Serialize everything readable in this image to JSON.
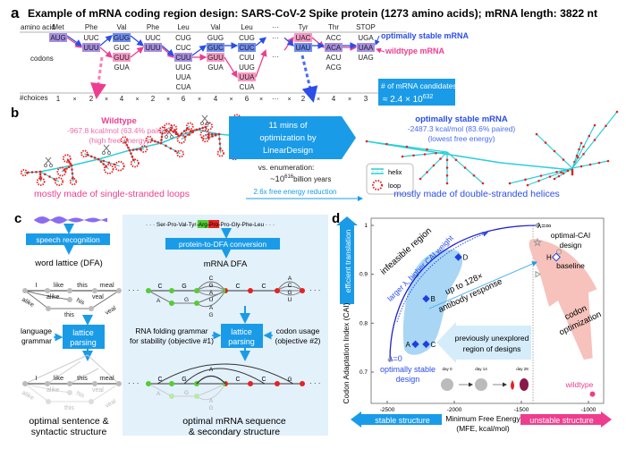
{
  "colors": {
    "optimal": "#2b4de8",
    "wildtype": "#ee3d8f",
    "accent": "#1a9be8",
    "panel_bg": "#e3f1fb",
    "opt_fill": "#6f8cf0",
    "wt_fill": "#f59ac3"
  },
  "panel_a": {
    "letter": "a",
    "title": "Example of mRNA coding region design: SARS-CoV-2 Spike protein (1273 amino acids); mRNA length: 3822 nt",
    "row_amino": "amino acid",
    "row_codons": "codons",
    "row_choices": "#choices",
    "columns": [
      {
        "aa": "Met",
        "codons": [
          "AUG"
        ],
        "choices": "1",
        "opt": 0,
        "wt": 0
      },
      {
        "aa": "Phe",
        "codons": [
          "UUC",
          "UUU"
        ],
        "choices": "2",
        "opt": 1,
        "wt": 1
      },
      {
        "aa": "Val",
        "codons": [
          "GUG",
          "GUC",
          "GUU",
          "GUA"
        ],
        "choices": "4",
        "opt": 0,
        "wt": 2
      },
      {
        "aa": "Phe",
        "codons": [
          "UUC",
          "UUU"
        ],
        "choices": "2",
        "opt": 1,
        "wt": 1
      },
      {
        "aa": "Leu",
        "codons": [
          "CUG",
          "CUC",
          "CUU",
          "UUG",
          "UUA",
          "CUA"
        ],
        "choices": "6",
        "opt": 2,
        "wt": 2
      },
      {
        "aa": "Val",
        "codons": [
          "GUG",
          "GUC",
          "GUU",
          "GUA"
        ],
        "choices": "4",
        "opt": 1,
        "wt": 2
      },
      {
        "aa": "Leu",
        "codons": [
          "CUG",
          "CUC",
          "CUU",
          "UUG",
          "UUA",
          "CUA"
        ],
        "choices": "6",
        "opt": 1,
        "wt": 4
      },
      {
        "aa": "···",
        "codons": [
          "···",
          "···"
        ],
        "choices": "···",
        "opt": null,
        "wt": null
      },
      {
        "aa": "Tyr",
        "codons": [
          "UAC",
          "UAU"
        ],
        "choices": "2",
        "opt": 1,
        "wt": 0
      },
      {
        "aa": "Thr",
        "codons": [
          "ACC",
          "ACA",
          "ACU",
          "ACG"
        ],
        "choices": "4",
        "opt": 1,
        "wt": 1
      },
      {
        "aa": "STOP",
        "codons": [
          "UGA",
          "UAA",
          "UAG"
        ],
        "choices": "3",
        "opt": 1,
        "wt": 1
      }
    ],
    "times": "×",
    "legend_optimal": "optimally stable mRNA",
    "legend_wildtype": "wildtype mRNA",
    "candidates_label": "# of mRNA candidates",
    "candidates_value": "≈ 2.4 × 10",
    "candidates_exp": "632"
  },
  "panel_b": {
    "letter": "b",
    "wt_title": "Wildtype",
    "wt_energy": "-967.8 kcal/mol (63.4% paired)",
    "wt_note": "(high free energy)",
    "wt_caption": "mostly made of single-stranded loops",
    "arrow_lines": [
      "11 mins of",
      "optimization by",
      "LinearDesign"
    ],
    "enum_label": "vs. enumeration:",
    "enum_value": "~10",
    "enum_exp": "616",
    "enum_unit": "billion years",
    "reduction": "2.6x free energy reduction",
    "legend_helix": "helix",
    "legend_loop": "loop",
    "opt_title": "optimally stable mRNA",
    "opt_energy": "-2487.3 kcal/mol (83.6% paired)",
    "opt_note": "(lowest free energy)",
    "opt_caption": "mostly made of double-stranded helices"
  },
  "panel_c": {
    "letter": "c",
    "speech_box": "speech recognition",
    "word_lattice": "word lattice (DFA)",
    "words": {
      "I": "I",
      "like": "like",
      "this": "this",
      "meal": "meal",
      "alike": "alike",
      "his": "his",
      "veal": "veal"
    },
    "language_grammar": [
      "language",
      "grammar"
    ],
    "lattice_parsing": [
      "lattice",
      "parsing"
    ],
    "optimal_sentence": [
      "optimal sentence &",
      "syntactic structure"
    ],
    "protein_seq_pre": "· · · Ser-Pro-Val-Tyr-",
    "protein_arg": "Arg",
    "protein_sep": "-",
    "protein_pro": "Pro",
    "protein_seq_post": "-Pro-Gly-Phe-Leu · · ·",
    "dfa_box": "protein-to-DFA conversion",
    "mrna_dfa": "mRNA DFA",
    "rna_grammar": [
      "RNA folding grammar",
      "for stability (objective #1)"
    ],
    "codon_usage": [
      "codon usage",
      "(objective #2)"
    ],
    "optimal_mrna": [
      "optimal mRNA sequence",
      "& secondary structure"
    ],
    "dots": "· · ·"
  },
  "panel_d": {
    "letter": "d",
    "y_arrow": "efficient translation",
    "y_label": "Codon Adaptation Index (CAI)",
    "x_label": [
      "Minimum Free Energy",
      "(MFE, kcal/mol)"
    ],
    "x_left_arrow": "stable structure",
    "x_right_arrow": "unstable structure",
    "x_ticks": [
      "-2500",
      "-2000",
      "-1500",
      "-1000"
    ],
    "y_ticks": [
      "1",
      "0.9",
      "0.8",
      "0.7"
    ],
    "infeasible": "infeasible region",
    "lambda_trend": "larger λ, higher CAI weight",
    "antibody": [
      "up to 128×",
      "antibody response"
    ],
    "codon_opt": [
      "codon",
      "optimization"
    ],
    "unexplored": [
      "previously unexplored",
      "region of designs"
    ],
    "lambda0": "λ=0",
    "lambda0_caption": [
      "optimally stable",
      "design"
    ],
    "lambdainf": "λ=∞",
    "optcai": [
      "optimal-CAI",
      "design"
    ],
    "baseline": "baseline",
    "wildtype": "wildtype",
    "days": [
      "day 0",
      "day 14",
      "day 28"
    ],
    "points": [
      {
        "label": "D",
        "mfe": -1970,
        "cai": 0.935
      },
      {
        "label": "B",
        "mfe": -2210,
        "cai": 0.85
      },
      {
        "label": "A",
        "mfe": -2290,
        "cai": 0.757
      },
      {
        "label": "C",
        "mfe": -2210,
        "cai": 0.757
      },
      {
        "label": "H",
        "mfe": -1240,
        "cai": 0.935
      }
    ],
    "wildtype_point": {
      "mfe": -970,
      "cai": 0.655
    },
    "lambda0_point": {
      "mfe": -2480,
      "cai": 0.725
    },
    "lambdainf_point": {
      "mfe": -1380,
      "cai": 1.0
    }
  }
}
